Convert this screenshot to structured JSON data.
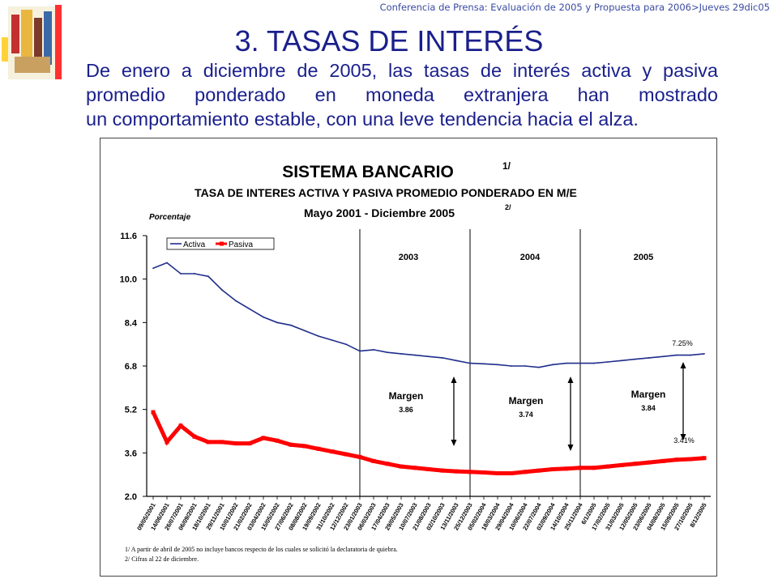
{
  "header": {
    "conference": "Conferencia de Prensa: Evaluación de 2005 y Propuesta para 2006>Jueves 29dic05"
  },
  "slide": {
    "title": "3. TASAS DE INTERÉS",
    "intro_line1": "De enero a diciembre de 2005, las tasas de interés activa y pasiva promedio ponderado en moneda extranjera han mostrado",
    "intro_line2": "un comportamiento estable, con una leve tendencia hacia el alza."
  },
  "colors": {
    "activa": "#1f2e8c",
    "pasiva": "#ff0000",
    "text_blue": "#1a1f8c"
  },
  "chart_data": {
    "type": "line",
    "title": "SISTEMA BANCARIO",
    "title_note": "1/",
    "subtitle": "TASA DE INTERES ACTIVA Y PASIVA PROMEDIO PONDERADO EN M/E",
    "period": "Mayo 2001 - Diciembre 2005",
    "period_note": "2/",
    "ylabel": "Porcentaje",
    "ylim": [
      2.0,
      11.6
    ],
    "yticks": [
      "11.6",
      "10.0",
      "8.4",
      "6.8",
      "5.2",
      "3.6",
      "2.0"
    ],
    "legend": [
      "Activa",
      "Pasiva"
    ],
    "legend_position": "top-left",
    "x": [
      "09/05/2001",
      "14/06/2001",
      "26/07/2001",
      "06/09/2001",
      "18/10/2001",
      "29/11/2001",
      "10/01/2002",
      "21/02/2002",
      "03/04/2002",
      "15/05/2002",
      "27/06/2002",
      "08/08/2002",
      "19/09/2002",
      "31/10/2002",
      "12/12/2002",
      "23/01/2003",
      "06/03/2003",
      "17/04/2003",
      "29/05/2003",
      "10/07/2003",
      "21/08/2003",
      "02/10/2003",
      "13/11/2003",
      "25/12/2003",
      "05/02/2004",
      "18/03/2004",
      "29/04/2004",
      "10/06/2004",
      "22/07/2004",
      "02/09/2004",
      "14/10/2004",
      "25/11/2004",
      "6/1/2005",
      "17/02/2005",
      "31/03/2005",
      "12/05/2005",
      "23/06/2005",
      "04/08/2005",
      "15/09/2005",
      "27/10/2005",
      "8/12/2005"
    ],
    "series": [
      {
        "name": "Activa",
        "values": [
          10.4,
          10.6,
          10.2,
          10.2,
          10.1,
          9.6,
          9.2,
          8.9,
          8.6,
          8.4,
          8.3,
          8.1,
          7.9,
          7.75,
          7.6,
          7.35,
          7.4,
          7.3,
          7.25,
          7.2,
          7.15,
          7.1,
          7.0,
          6.9,
          6.88,
          6.85,
          6.8,
          6.8,
          6.75,
          6.85,
          6.9,
          6.9,
          6.9,
          6.95,
          7.0,
          7.05,
          7.1,
          7.15,
          7.2,
          7.2,
          7.25
        ]
      },
      {
        "name": "Pasiva",
        "values": [
          5.1,
          4.0,
          4.6,
          4.2,
          4.0,
          4.0,
          3.95,
          3.95,
          4.15,
          4.05,
          3.9,
          3.85,
          3.75,
          3.65,
          3.55,
          3.45,
          3.3,
          3.2,
          3.1,
          3.05,
          3.0,
          2.95,
          2.92,
          2.9,
          2.88,
          2.85,
          2.85,
          2.9,
          2.95,
          3.0,
          3.02,
          3.05,
          3.05,
          3.1,
          3.15,
          3.2,
          3.25,
          3.3,
          3.35,
          3.37,
          3.41
        ]
      }
    ],
    "year_separators": [
      "23/01/2003",
      "25/12/2003",
      "25/11/2004"
    ],
    "year_labels": [
      "2003",
      "2004",
      "2005"
    ],
    "margins": [
      {
        "label": "Margen",
        "value": "3.86"
      },
      {
        "label": "Margen",
        "value": "3.74"
      },
      {
        "label": "Margen",
        "value": "3.84"
      }
    ],
    "annotations": [
      "7.25%",
      "3.41%"
    ],
    "footnotes": [
      "1/ A partir de abril de 2005 no incluye bancos respecto de los cuales se solicitó la declaratoria de quiebra.",
      "2/ Cifras al 22 de diciembre."
    ]
  }
}
